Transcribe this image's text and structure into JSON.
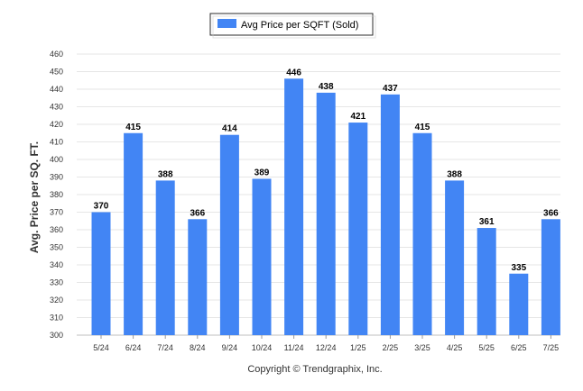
{
  "chart_data": {
    "type": "bar",
    "categories": [
      "5/24",
      "6/24",
      "7/24",
      "8/24",
      "9/24",
      "10/24",
      "11/24",
      "12/24",
      "1/25",
      "2/25",
      "3/25",
      "4/25",
      "5/25",
      "6/25",
      "7/25"
    ],
    "series": [
      {
        "name": "Avg Price per SQFT (Sold)",
        "values": [
          370,
          415,
          388,
          366,
          414,
          389,
          446,
          438,
          421,
          437,
          415,
          388,
          361,
          335,
          366
        ],
        "color": "#4285f4"
      }
    ],
    "ylabel": "Avg. Price per SQ. FT.",
    "xlabel": "",
    "ylim": [
      300,
      460
    ],
    "yticks": [
      300,
      310,
      320,
      330,
      340,
      350,
      360,
      370,
      380,
      390,
      400,
      410,
      420,
      430,
      440,
      450,
      460
    ],
    "grid": true,
    "legend_position": "top-center",
    "copyright": "Copyright © Trendgraphix, Inc."
  }
}
